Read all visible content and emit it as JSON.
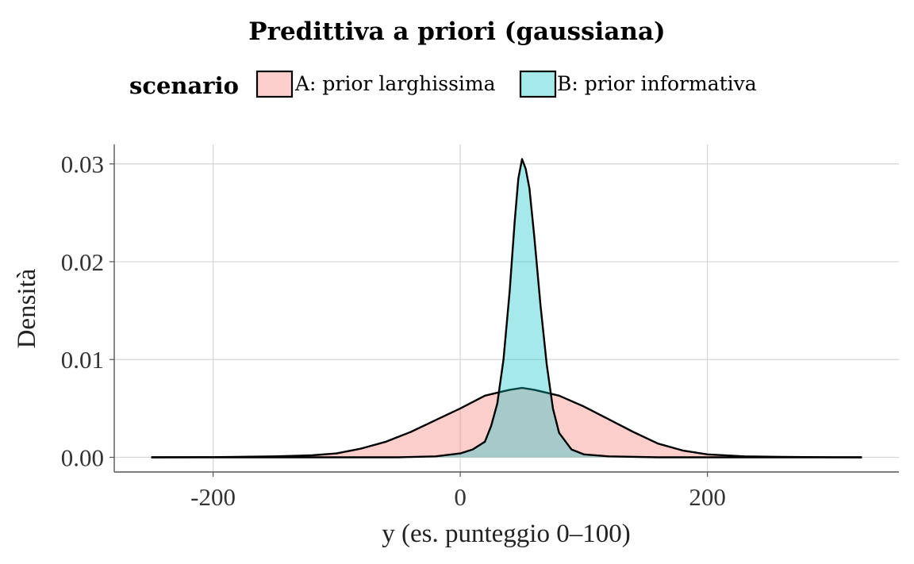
{
  "chart_data": {
    "type": "area",
    "title": "Predittiva a priori (gaussiana)",
    "xlabel": "y (es. punteggio 0–100)",
    "ylabel": "Densità",
    "xlim": [
      -280,
      355
    ],
    "ylim": [
      -0.0015,
      0.032
    ],
    "x_ticks": [
      -200,
      0,
      200
    ],
    "x_tick_labels": [
      "-200",
      "0",
      "200"
    ],
    "y_ticks": [
      0.0,
      0.01,
      0.02,
      0.03
    ],
    "y_tick_labels": [
      "0.00",
      "0.01",
      "0.02",
      "0.03"
    ],
    "grid": true,
    "legend": {
      "title": "scenario",
      "placement": "top"
    },
    "series": [
      {
        "name": "A: prior larghissima",
        "fill": "#f8766d",
        "stroke": "#000000",
        "points": [
          [
            -250,
            0.0
          ],
          [
            -200,
            2e-05
          ],
          [
            -150,
            0.0001
          ],
          [
            -120,
            0.0002
          ],
          [
            -100,
            0.0004
          ],
          [
            -80,
            0.0009
          ],
          [
            -60,
            0.0016
          ],
          [
            -40,
            0.0026
          ],
          [
            -20,
            0.0038
          ],
          [
            0,
            0.005
          ],
          [
            20,
            0.0063
          ],
          [
            40,
            0.0069
          ],
          [
            50,
            0.0071
          ],
          [
            60,
            0.0069
          ],
          [
            80,
            0.0063
          ],
          [
            100,
            0.0052
          ],
          [
            120,
            0.0039
          ],
          [
            140,
            0.0026
          ],
          [
            160,
            0.0014
          ],
          [
            180,
            0.0007
          ],
          [
            200,
            0.0003
          ],
          [
            230,
            0.0001
          ],
          [
            260,
            4e-05
          ],
          [
            300,
            1e-05
          ],
          [
            325,
            0.0
          ]
        ]
      },
      {
        "name": "B: prior informativa",
        "fill": "#00bfc4",
        "stroke": "#000000",
        "points": [
          [
            -250,
            0.0
          ],
          [
            -50,
            0.0
          ],
          [
            -20,
            0.0001
          ],
          [
            0,
            0.0004
          ],
          [
            10,
            0.0008
          ],
          [
            20,
            0.0016
          ],
          [
            25,
            0.0032
          ],
          [
            30,
            0.0055
          ],
          [
            35,
            0.01
          ],
          [
            40,
            0.017
          ],
          [
            44,
            0.024
          ],
          [
            47,
            0.0285
          ],
          [
            50,
            0.0305
          ],
          [
            53,
            0.0295
          ],
          [
            56,
            0.0275
          ],
          [
            60,
            0.0225
          ],
          [
            65,
            0.0155
          ],
          [
            70,
            0.0095
          ],
          [
            75,
            0.005
          ],
          [
            80,
            0.0025
          ],
          [
            90,
            0.0008
          ],
          [
            100,
            0.0003
          ],
          [
            120,
            0.0001
          ],
          [
            160,
            0.0
          ],
          [
            325,
            0.0
          ]
        ]
      }
    ]
  }
}
